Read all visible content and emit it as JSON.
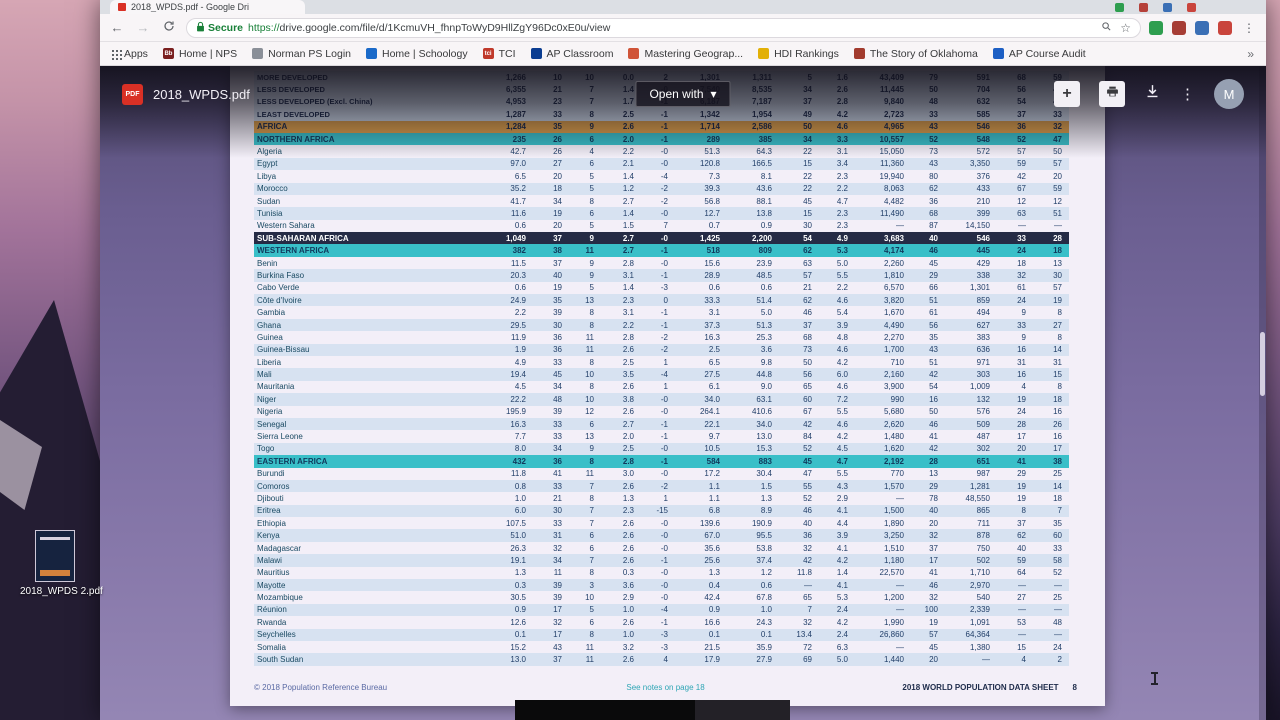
{
  "browser": {
    "tab_title": "2018_WPDS.pdf - Google Dri",
    "mini_tab_colors": [
      "#2e9e4f",
      "#b5413a",
      "#3a6fb5",
      "#c9443c"
    ],
    "nav": {
      "secure_label": "Secure",
      "url_protocol": "https://",
      "url_rest": "drive.google.com/file/d/1KcmuVH_fhnpToWyD9HllZgY96Dc0xE0u/view"
    },
    "extension_colors": [
      "#2e9e4f",
      "#a63d35",
      "#3a6fb5",
      "#c9443c"
    ],
    "bookmarks": [
      {
        "label": "Apps",
        "icon": "apps-grid"
      },
      {
        "label": "Home | NPS",
        "color": "#7a1f1f",
        "glyph": "Bb"
      },
      {
        "label": "Norman PS Login",
        "color": "#8a8f98",
        "glyph": ""
      },
      {
        "label": "Home | Schoology",
        "color": "#1b6ac9",
        "glyph": ""
      },
      {
        "label": "TCI",
        "color": "#c0392b",
        "glyph": "tci"
      },
      {
        "label": "AP Classroom",
        "color": "#0b3d91",
        "glyph": ""
      },
      {
        "label": "Mastering Geograp...",
        "color": "#d05438",
        "glyph": ""
      },
      {
        "label": "HDI Rankings",
        "color": "#e2b007",
        "glyph": ""
      },
      {
        "label": "The Story of Oklahoma",
        "color": "#a23b2e",
        "glyph": ""
      },
      {
        "label": "AP Course Audit",
        "color": "#1d5fc4",
        "glyph": ""
      }
    ],
    "bookmarks_overflow": "»"
  },
  "drive_toolbar": {
    "pdf_badge": "PDF",
    "filename": "2018_WPDS.pdf",
    "open_with": "Open with",
    "avatar_letter": "M"
  },
  "icons": {
    "back": "←",
    "forward": "→",
    "refresh": "svg-circular-arrow",
    "lock": "svg-padlock",
    "magnifier": "svg-magnifier",
    "star": "☆",
    "more_vertical": "⋮",
    "plus": "+",
    "printer": "svg-printer",
    "download": "svg-download-arrow",
    "dropdown_caret": "▾",
    "overflow_chevrons": "»"
  },
  "colors": {
    "region_header": "#39bfc8",
    "continent_row": "#e0a14b",
    "subsaharan_row": "#252b45",
    "row_alt": "#d7e2f1",
    "secure_green": "#188038",
    "pdf_red": "#d93025"
  },
  "pdf": {
    "rows": [
      {
        "name": "MORE DEVELOPED",
        "type": "group",
        "alt": false,
        "values": [
          "1,266",
          "10",
          "10",
          "0.0",
          "2",
          "1,301",
          "1,311",
          "5",
          "1.6",
          "43,409",
          "79",
          "591",
          "68",
          "59"
        ]
      },
      {
        "name": "LESS DEVELOPED",
        "type": "group",
        "alt": false,
        "values": [
          "6,355",
          "21",
          "7",
          "1.4",
          "-0",
          "7,540",
          "8,535",
          "34",
          "2.6",
          "11,445",
          "50",
          "704",
          "56",
          "46"
        ]
      },
      {
        "name": "LESS DEVELOPED (Excl. China)",
        "type": "group",
        "alt": false,
        "values": [
          "4,953",
          "23",
          "7",
          "1.7",
          "-1",
          "6,187",
          "7,187",
          "37",
          "2.8",
          "9,840",
          "48",
          "632",
          "54",
          "44"
        ]
      },
      {
        "name": "LEAST DEVELOPED",
        "type": "group",
        "alt": false,
        "values": [
          "1,287",
          "33",
          "8",
          "2.5",
          "-1",
          "1,342",
          "1,954",
          "49",
          "4.2",
          "2,723",
          "33",
          "585",
          "37",
          "33"
        ]
      },
      {
        "name": "AFRICA",
        "type": "continent",
        "alt": false,
        "values": [
          "1,284",
          "35",
          "9",
          "2.6",
          "-1",
          "1,714",
          "2,586",
          "50",
          "4.6",
          "4,965",
          "43",
          "546",
          "36",
          "32"
        ]
      },
      {
        "name": "NORTHERN AFRICA",
        "type": "region",
        "alt": false,
        "values": [
          "235",
          "26",
          "6",
          "2.0",
          "-1",
          "289",
          "385",
          "34",
          "3.3",
          "10,557",
          "52",
          "548",
          "52",
          "47"
        ]
      },
      {
        "name": "Algeria",
        "type": "country",
        "alt": false,
        "values": [
          "42.7",
          "26",
          "4",
          "2.2",
          "-0",
          "51.3",
          "64.3",
          "22",
          "3.1",
          "15,050",
          "73",
          "572",
          "57",
          "50"
        ]
      },
      {
        "name": "Egypt",
        "type": "country",
        "alt": true,
        "values": [
          "97.0",
          "27",
          "6",
          "2.1",
          "-0",
          "120.8",
          "166.5",
          "15",
          "3.4",
          "11,360",
          "43",
          "3,350",
          "59",
          "57"
        ]
      },
      {
        "name": "Libya",
        "type": "country",
        "alt": false,
        "values": [
          "6.5",
          "20",
          "5",
          "1.4",
          "-4",
          "7.3",
          "8.1",
          "22",
          "2.3",
          "19,940",
          "80",
          "376",
          "42",
          "20"
        ]
      },
      {
        "name": "Morocco",
        "type": "country",
        "alt": true,
        "values": [
          "35.2",
          "18",
          "5",
          "1.2",
          "-2",
          "39.3",
          "43.6",
          "22",
          "2.2",
          "8,063",
          "62",
          "433",
          "67",
          "59"
        ]
      },
      {
        "name": "Sudan",
        "type": "country",
        "alt": false,
        "values": [
          "41.7",
          "34",
          "8",
          "2.7",
          "-2",
          "56.8",
          "88.1",
          "45",
          "4.7",
          "4,482",
          "36",
          "210",
          "12",
          "12"
        ]
      },
      {
        "name": "Tunisia",
        "type": "country",
        "alt": true,
        "values": [
          "11.6",
          "19",
          "6",
          "1.4",
          "-0",
          "12.7",
          "13.8",
          "15",
          "2.3",
          "11,490",
          "68",
          "399",
          "63",
          "51"
        ]
      },
      {
        "name": "Western Sahara",
        "type": "country",
        "alt": false,
        "values": [
          "0.6",
          "20",
          "5",
          "1.5",
          "7",
          "0.7",
          "0.9",
          "30",
          "2.3",
          "—",
          "87",
          "14,150",
          "—",
          "—"
        ]
      },
      {
        "name": "SUB-SAHARAN AFRICA",
        "type": "dark",
        "alt": false,
        "values": [
          "1,049",
          "37",
          "9",
          "2.7",
          "-0",
          "1,425",
          "2,200",
          "54",
          "4.9",
          "3,683",
          "40",
          "546",
          "33",
          "28"
        ]
      },
      {
        "name": "WESTERN AFRICA",
        "type": "region",
        "alt": false,
        "values": [
          "382",
          "38",
          "11",
          "2.7",
          "-1",
          "518",
          "809",
          "62",
          "5.3",
          "4,174",
          "46",
          "445",
          "24",
          "18"
        ]
      },
      {
        "name": "Benin",
        "type": "country",
        "alt": false,
        "values": [
          "11.5",
          "37",
          "9",
          "2.8",
          "-0",
          "15.6",
          "23.9",
          "63",
          "5.0",
          "2,260",
          "45",
          "429",
          "18",
          "13"
        ]
      },
      {
        "name": "Burkina Faso",
        "type": "country",
        "alt": true,
        "values": [
          "20.3",
          "40",
          "9",
          "3.1",
          "-1",
          "28.9",
          "48.5",
          "57",
          "5.5",
          "1,810",
          "29",
          "338",
          "32",
          "30"
        ]
      },
      {
        "name": "Cabo Verde",
        "type": "country",
        "alt": false,
        "values": [
          "0.6",
          "19",
          "5",
          "1.4",
          "-3",
          "0.6",
          "0.6",
          "21",
          "2.2",
          "6,570",
          "66",
          "1,301",
          "61",
          "57"
        ]
      },
      {
        "name": "Côte d'Ivoire",
        "type": "country",
        "alt": true,
        "values": [
          "24.9",
          "35",
          "13",
          "2.3",
          "0",
          "33.3",
          "51.4",
          "62",
          "4.6",
          "3,820",
          "51",
          "859",
          "24",
          "19"
        ]
      },
      {
        "name": "Gambia",
        "type": "country",
        "alt": false,
        "values": [
          "2.2",
          "39",
          "8",
          "3.1",
          "-1",
          "3.1",
          "5.0",
          "46",
          "5.4",
          "1,670",
          "61",
          "494",
          "9",
          "8"
        ]
      },
      {
        "name": "Ghana",
        "type": "country",
        "alt": true,
        "values": [
          "29.5",
          "30",
          "8",
          "2.2",
          "-1",
          "37.3",
          "51.3",
          "37",
          "3.9",
          "4,490",
          "56",
          "627",
          "33",
          "27"
        ]
      },
      {
        "name": "Guinea",
        "type": "country",
        "alt": false,
        "values": [
          "11.9",
          "36",
          "11",
          "2.8",
          "-2",
          "16.3",
          "25.3",
          "68",
          "4.8",
          "2,270",
          "35",
          "383",
          "9",
          "8"
        ]
      },
      {
        "name": "Guinea-Bissau",
        "type": "country",
        "alt": true,
        "values": [
          "1.9",
          "36",
          "11",
          "2.6",
          "-2",
          "2.5",
          "3.6",
          "73",
          "4.6",
          "1,700",
          "43",
          "636",
          "16",
          "14"
        ]
      },
      {
        "name": "Liberia",
        "type": "country",
        "alt": false,
        "values": [
          "4.9",
          "33",
          "8",
          "2.5",
          "1",
          "6.5",
          "9.8",
          "50",
          "4.2",
          "710",
          "51",
          "971",
          "31",
          "31"
        ]
      },
      {
        "name": "Mali",
        "type": "country",
        "alt": true,
        "values": [
          "19.4",
          "45",
          "10",
          "3.5",
          "-4",
          "27.5",
          "44.8",
          "56",
          "6.0",
          "2,160",
          "42",
          "303",
          "16",
          "15"
        ]
      },
      {
        "name": "Mauritania",
        "type": "country",
        "alt": false,
        "values": [
          "4.5",
          "34",
          "8",
          "2.6",
          "1",
          "6.1",
          "9.0",
          "65",
          "4.6",
          "3,900",
          "54",
          "1,009",
          "4",
          "8"
        ]
      },
      {
        "name": "Niger",
        "type": "country",
        "alt": true,
        "values": [
          "22.2",
          "48",
          "10",
          "3.8",
          "-0",
          "34.0",
          "63.1",
          "60",
          "7.2",
          "990",
          "16",
          "132",
          "19",
          "18"
        ]
      },
      {
        "name": "Nigeria",
        "type": "country",
        "alt": false,
        "values": [
          "195.9",
          "39",
          "12",
          "2.6",
          "-0",
          "264.1",
          "410.6",
          "67",
          "5.5",
          "5,680",
          "50",
          "576",
          "24",
          "16"
        ]
      },
      {
        "name": "Senegal",
        "type": "country",
        "alt": true,
        "values": [
          "16.3",
          "33",
          "6",
          "2.7",
          "-1",
          "22.1",
          "34.0",
          "42",
          "4.6",
          "2,620",
          "46",
          "509",
          "28",
          "26"
        ]
      },
      {
        "name": "Sierra Leone",
        "type": "country",
        "alt": false,
        "values": [
          "7.7",
          "33",
          "13",
          "2.0",
          "-1",
          "9.7",
          "13.0",
          "84",
          "4.2",
          "1,480",
          "41",
          "487",
          "17",
          "16"
        ]
      },
      {
        "name": "Togo",
        "type": "country",
        "alt": true,
        "values": [
          "8.0",
          "34",
          "9",
          "2.5",
          "-0",
          "10.5",
          "15.3",
          "52",
          "4.5",
          "1,620",
          "42",
          "302",
          "20",
          "17"
        ]
      },
      {
        "name": "EASTERN AFRICA",
        "type": "region",
        "alt": false,
        "values": [
          "432",
          "36",
          "8",
          "2.8",
          "-1",
          "584",
          "883",
          "45",
          "4.7",
          "2,192",
          "28",
          "651",
          "41",
          "38"
        ]
      },
      {
        "name": "Burundi",
        "type": "country",
        "alt": false,
        "values": [
          "11.8",
          "41",
          "11",
          "3.0",
          "-0",
          "17.2",
          "30.4",
          "47",
          "5.5",
          "770",
          "13",
          "987",
          "29",
          "25"
        ]
      },
      {
        "name": "Comoros",
        "type": "country",
        "alt": true,
        "values": [
          "0.8",
          "33",
          "7",
          "2.6",
          "-2",
          "1.1",
          "1.5",
          "55",
          "4.3",
          "1,570",
          "29",
          "1,281",
          "19",
          "14"
        ]
      },
      {
        "name": "Djibouti",
        "type": "country",
        "alt": false,
        "values": [
          "1.0",
          "21",
          "8",
          "1.3",
          "1",
          "1.1",
          "1.3",
          "52",
          "2.9",
          "—",
          "78",
          "48,550",
          "19",
          "18"
        ]
      },
      {
        "name": "Eritrea",
        "type": "country",
        "alt": true,
        "values": [
          "6.0",
          "30",
          "7",
          "2.3",
          "-15",
          "6.8",
          "8.9",
          "46",
          "4.1",
          "1,500",
          "40",
          "865",
          "8",
          "7"
        ]
      },
      {
        "name": "Ethiopia",
        "type": "country",
        "alt": false,
        "values": [
          "107.5",
          "33",
          "7",
          "2.6",
          "-0",
          "139.6",
          "190.9",
          "40",
          "4.4",
          "1,890",
          "20",
          "711",
          "37",
          "35"
        ]
      },
      {
        "name": "Kenya",
        "type": "country",
        "alt": true,
        "values": [
          "51.0",
          "31",
          "6",
          "2.6",
          "-0",
          "67.0",
          "95.5",
          "36",
          "3.9",
          "3,250",
          "32",
          "878",
          "62",
          "60"
        ]
      },
      {
        "name": "Madagascar",
        "type": "country",
        "alt": false,
        "values": [
          "26.3",
          "32",
          "6",
          "2.6",
          "-0",
          "35.6",
          "53.8",
          "32",
          "4.1",
          "1,510",
          "37",
          "750",
          "40",
          "33"
        ]
      },
      {
        "name": "Malawi",
        "type": "country",
        "alt": true,
        "values": [
          "19.1",
          "34",
          "7",
          "2.6",
          "-1",
          "25.6",
          "37.4",
          "42",
          "4.2",
          "1,180",
          "17",
          "502",
          "59",
          "58"
        ]
      },
      {
        "name": "Mauritius",
        "type": "country",
        "alt": false,
        "values": [
          "1.3",
          "11",
          "8",
          "0.3",
          "-0",
          "1.3",
          "1.2",
          "11.8",
          "1.4",
          "22,570",
          "41",
          "1,710",
          "64",
          "52"
        ]
      },
      {
        "name": "Mayotte",
        "type": "country",
        "alt": true,
        "values": [
          "0.3",
          "39",
          "3",
          "3.6",
          "-0",
          "0.4",
          "0.6",
          "—",
          "4.1",
          "—",
          "46",
          "2,970",
          "—",
          "—"
        ]
      },
      {
        "name": "Mozambique",
        "type": "country",
        "alt": false,
        "values": [
          "30.5",
          "39",
          "10",
          "2.9",
          "-0",
          "42.4",
          "67.8",
          "65",
          "5.3",
          "1,200",
          "32",
          "540",
          "27",
          "25"
        ]
      },
      {
        "name": "Réunion",
        "type": "country",
        "alt": true,
        "values": [
          "0.9",
          "17",
          "5",
          "1.0",
          "-4",
          "0.9",
          "1.0",
          "7",
          "2.4",
          "—",
          "100",
          "2,339",
          "—",
          "—"
        ]
      },
      {
        "name": "Rwanda",
        "type": "country",
        "alt": false,
        "values": [
          "12.6",
          "32",
          "6",
          "2.6",
          "-1",
          "16.6",
          "24.3",
          "32",
          "4.2",
          "1,990",
          "19",
          "1,091",
          "53",
          "48"
        ]
      },
      {
        "name": "Seychelles",
        "type": "country",
        "alt": true,
        "values": [
          "0.1",
          "17",
          "8",
          "1.0",
          "-3",
          "0.1",
          "0.1",
          "13.4",
          "2.4",
          "26,860",
          "57",
          "64,364",
          "—",
          "—"
        ]
      },
      {
        "name": "Somalia",
        "type": "country",
        "alt": false,
        "values": [
          "15.2",
          "43",
          "11",
          "3.2",
          "-3",
          "21.5",
          "35.9",
          "72",
          "6.3",
          "—",
          "45",
          "1,380",
          "15",
          "24"
        ]
      },
      {
        "name": "South Sudan",
        "type": "country",
        "alt": true,
        "values": [
          "13.0",
          "37",
          "11",
          "2.6",
          "4",
          "17.9",
          "27.9",
          "69",
          "5.0",
          "1,440",
          "20",
          "—",
          "4",
          "2"
        ]
      }
    ],
    "footer": {
      "left": "© 2018 Population Reference Bureau",
      "center": "See notes on page 18",
      "right": "2018 WORLD POPULATION DATA SHEET",
      "page_number": "8"
    }
  },
  "desktop": {
    "file_label": "2018_WPDS 2.pdf"
  }
}
